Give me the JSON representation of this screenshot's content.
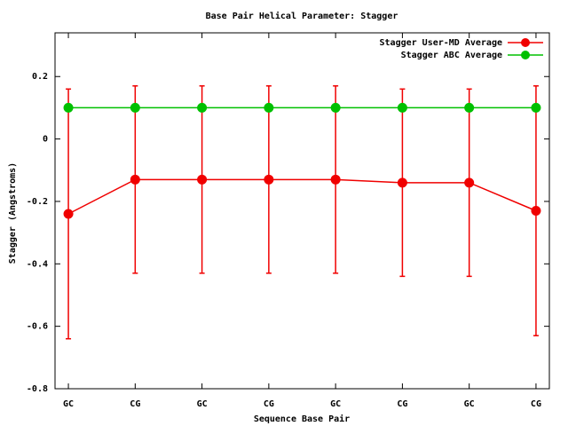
{
  "chart_data": {
    "type": "line",
    "title": "Base Pair Helical Parameter: Stagger",
    "xlabel": "Sequence Base Pair",
    "ylabel": "Stagger (Angstroms)",
    "categories": [
      "GC",
      "CG",
      "GC",
      "CG",
      "GC",
      "CG",
      "GC",
      "CG"
    ],
    "series": [
      {
        "name": "Stagger User-MD Average",
        "color": "#f00000",
        "values": [
          -0.24,
          -0.13,
          -0.13,
          -0.13,
          -0.13,
          -0.14,
          -0.14,
          -0.23
        ],
        "errors": [
          0.4,
          0.3,
          0.3,
          0.3,
          0.3,
          0.3,
          0.3,
          0.4
        ]
      },
      {
        "name": "Stagger ABC Average",
        "color": "#00c000",
        "values": [
          0.1,
          0.1,
          0.1,
          0.1,
          0.1,
          0.1,
          0.1,
          0.1
        ]
      }
    ],
    "ylim": [
      -0.8,
      0.34
    ],
    "yticks": [
      -0.8,
      -0.6,
      -0.4,
      -0.2,
      0,
      0.2
    ],
    "legend": "top-right"
  }
}
